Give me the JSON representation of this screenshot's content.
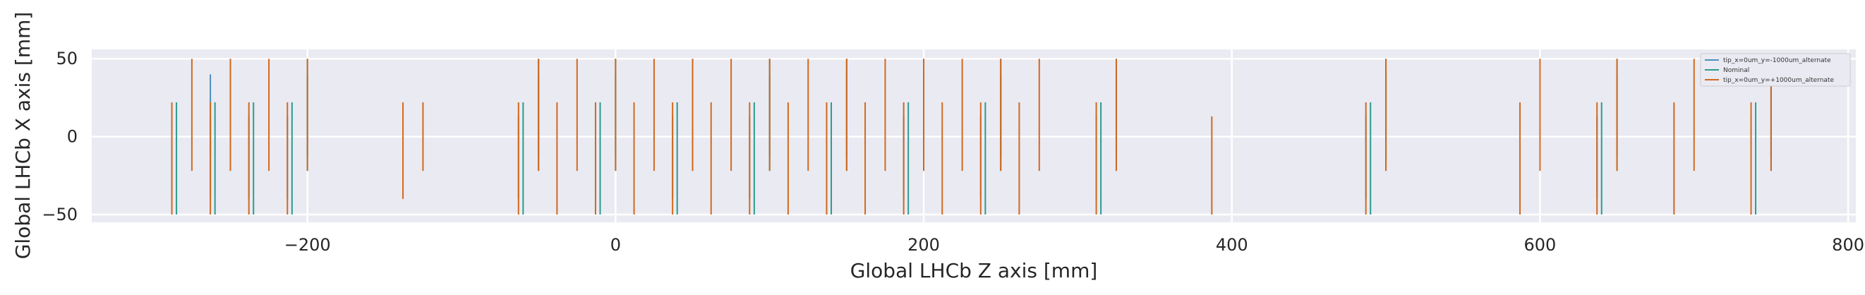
{
  "chart_data": {
    "type": "line",
    "xlabel": "Global LHCb Z axis [mm]",
    "ylabel": "Global LHCb X axis [mm]",
    "xlim": [
      -340,
      805
    ],
    "ylim": [
      -55,
      56
    ],
    "xticks": [
      -200,
      0,
      200,
      400,
      600,
      800
    ],
    "xtick_labels": [
      "−200",
      "0",
      "200",
      "400",
      "600",
      "800"
    ],
    "yticks": [
      -50,
      0,
      50
    ],
    "ytick_labels": [
      "−50",
      "0",
      "50"
    ],
    "grid": true,
    "legend_position": "top-right",
    "series": [
      {
        "name": "tip_x=0um_y=-1000um_alternate",
        "color": "#4c8fbd",
        "segments": [
          {
            "z": -288,
            "y0": -40,
            "y1": 13
          },
          {
            "z": -263,
            "y0": -40,
            "y1": 13
          },
          {
            "z": -238,
            "y0": -40,
            "y1": 13
          },
          {
            "z": -213,
            "y0": -40,
            "y1": 13
          },
          {
            "z": -63,
            "y0": -40,
            "y1": 13
          },
          {
            "z": -13,
            "y0": -40,
            "y1": 13
          },
          {
            "z": 37,
            "y0": -40,
            "y1": 13
          },
          {
            "z": 87,
            "y0": -40,
            "y1": 13
          },
          {
            "z": 137,
            "y0": -40,
            "y1": 13
          },
          {
            "z": 187,
            "y0": -40,
            "y1": 13
          },
          {
            "z": 237,
            "y0": -40,
            "y1": 13
          },
          {
            "z": 312,
            "y0": -40,
            "y1": 13
          },
          {
            "z": 487,
            "y0": -40,
            "y1": 13
          },
          {
            "z": 637,
            "y0": -40,
            "y1": 13
          },
          {
            "z": 737,
            "y0": -40,
            "y1": 13
          },
          {
            "z": -263,
            "y0": -13,
            "y1": 40
          },
          {
            "z": -250,
            "y0": -13,
            "y1": 40
          },
          {
            "z": -200,
            "y0": -13,
            "y1": 40
          },
          {
            "z": -50,
            "y0": -13,
            "y1": 40
          },
          {
            "z": 0,
            "y0": -13,
            "y1": 40
          },
          {
            "z": 50,
            "y0": -13,
            "y1": 40
          },
          {
            "z": 100,
            "y0": -13,
            "y1": 40
          },
          {
            "z": 150,
            "y0": -13,
            "y1": 40
          },
          {
            "z": 200,
            "y0": -13,
            "y1": 40
          },
          {
            "z": 250,
            "y0": -13,
            "y1": 40
          },
          {
            "z": 325,
            "y0": -13,
            "y1": 40
          },
          {
            "z": 500,
            "y0": -13,
            "y1": 40
          },
          {
            "z": 650,
            "y0": -13,
            "y1": 40
          },
          {
            "z": 750,
            "y0": -13,
            "y1": 40
          }
        ]
      },
      {
        "name": "Nominal",
        "color": "#2a9d8f",
        "segments": [
          {
            "z": -285,
            "y0": -50,
            "y1": 22
          },
          {
            "z": -260,
            "y0": -50,
            "y1": 22
          },
          {
            "z": -235,
            "y0": -50,
            "y1": 22
          },
          {
            "z": -210,
            "y0": -50,
            "y1": 22
          },
          {
            "z": -60,
            "y0": -50,
            "y1": 22
          },
          {
            "z": -10,
            "y0": -50,
            "y1": 22
          },
          {
            "z": 40,
            "y0": -50,
            "y1": 22
          },
          {
            "z": 90,
            "y0": -50,
            "y1": 22
          },
          {
            "z": 140,
            "y0": -50,
            "y1": 22
          },
          {
            "z": 190,
            "y0": -50,
            "y1": 22
          },
          {
            "z": 240,
            "y0": -50,
            "y1": 22
          },
          {
            "z": 315,
            "y0": -50,
            "y1": 22
          },
          {
            "z": 490,
            "y0": -50,
            "y1": 22
          },
          {
            "z": 640,
            "y0": -50,
            "y1": 22
          },
          {
            "z": 740,
            "y0": -50,
            "y1": 22
          },
          {
            "z": -250,
            "y0": -22,
            "y1": 50
          },
          {
            "z": -200,
            "y0": -22,
            "y1": 50
          },
          {
            "z": -50,
            "y0": -22,
            "y1": 50
          },
          {
            "z": 0,
            "y0": -22,
            "y1": 50
          },
          {
            "z": 50,
            "y0": -22,
            "y1": 50
          },
          {
            "z": 100,
            "y0": -22,
            "y1": 50
          },
          {
            "z": 150,
            "y0": -22,
            "y1": 50
          },
          {
            "z": 200,
            "y0": -22,
            "y1": 50
          },
          {
            "z": 250,
            "y0": -22,
            "y1": 50
          },
          {
            "z": 325,
            "y0": -22,
            "y1": 50
          },
          {
            "z": 500,
            "y0": -22,
            "y1": 50
          },
          {
            "z": 650,
            "y0": -22,
            "y1": 50
          },
          {
            "z": 750,
            "y0": -22,
            "y1": 50
          }
        ]
      },
      {
        "name": "tip_x=0um_y=+1000um_alternate",
        "color": "#d2691e",
        "segments": [
          {
            "z": -288,
            "y0": -50,
            "y1": 22
          },
          {
            "z": -263,
            "y0": -50,
            "y1": 22
          },
          {
            "z": -238,
            "y0": -50,
            "y1": 22
          },
          {
            "z": -213,
            "y0": -50,
            "y1": 22
          },
          {
            "z": -138,
            "y0": -40,
            "y1": 22
          },
          {
            "z": -63,
            "y0": -50,
            "y1": 22
          },
          {
            "z": -38,
            "y0": -50,
            "y1": 22
          },
          {
            "z": -13,
            "y0": -50,
            "y1": 22
          },
          {
            "z": 12,
            "y0": -50,
            "y1": 22
          },
          {
            "z": 37,
            "y0": -50,
            "y1": 22
          },
          {
            "z": 62,
            "y0": -50,
            "y1": 22
          },
          {
            "z": 87,
            "y0": -50,
            "y1": 22
          },
          {
            "z": 112,
            "y0": -50,
            "y1": 22
          },
          {
            "z": 137,
            "y0": -50,
            "y1": 22
          },
          {
            "z": 162,
            "y0": -50,
            "y1": 22
          },
          {
            "z": 187,
            "y0": -50,
            "y1": 22
          },
          {
            "z": 212,
            "y0": -50,
            "y1": 22
          },
          {
            "z": 237,
            "y0": -50,
            "y1": 22
          },
          {
            "z": 262,
            "y0": -50,
            "y1": 22
          },
          {
            "z": 312,
            "y0": -50,
            "y1": 22
          },
          {
            "z": 387,
            "y0": -50,
            "y1": 13
          },
          {
            "z": 487,
            "y0": -50,
            "y1": 22
          },
          {
            "z": 587,
            "y0": -50,
            "y1": 22
          },
          {
            "z": 637,
            "y0": -50,
            "y1": 22
          },
          {
            "z": 687,
            "y0": -50,
            "y1": 22
          },
          {
            "z": 737,
            "y0": -50,
            "y1": 22
          },
          {
            "z": -275,
            "y0": -22,
            "y1": 50
          },
          {
            "z": -250,
            "y0": -22,
            "y1": 50
          },
          {
            "z": -225,
            "y0": -22,
            "y1": 50
          },
          {
            "z": -200,
            "y0": -22,
            "y1": 50
          },
          {
            "z": -125,
            "y0": -22,
            "y1": 22
          },
          {
            "z": -50,
            "y0": -22,
            "y1": 50
          },
          {
            "z": -25,
            "y0": -22,
            "y1": 50
          },
          {
            "z": 0,
            "y0": -22,
            "y1": 50
          },
          {
            "z": 25,
            "y0": -22,
            "y1": 50
          },
          {
            "z": 50,
            "y0": -22,
            "y1": 50
          },
          {
            "z": 75,
            "y0": -22,
            "y1": 50
          },
          {
            "z": 100,
            "y0": -22,
            "y1": 50
          },
          {
            "z": 125,
            "y0": -22,
            "y1": 50
          },
          {
            "z": 150,
            "y0": -22,
            "y1": 50
          },
          {
            "z": 175,
            "y0": -22,
            "y1": 50
          },
          {
            "z": 200,
            "y0": -22,
            "y1": 50
          },
          {
            "z": 225,
            "y0": -22,
            "y1": 50
          },
          {
            "z": 250,
            "y0": -22,
            "y1": 50
          },
          {
            "z": 275,
            "y0": -22,
            "y1": 50
          },
          {
            "z": 325,
            "y0": -22,
            "y1": 50
          },
          {
            "z": 500,
            "y0": -22,
            "y1": 50
          },
          {
            "z": 600,
            "y0": -22,
            "y1": 50
          },
          {
            "z": 650,
            "y0": -22,
            "y1": 50
          },
          {
            "z": 700,
            "y0": -22,
            "y1": 50
          },
          {
            "z": 750,
            "y0": -22,
            "y1": 50
          }
        ]
      }
    ]
  }
}
